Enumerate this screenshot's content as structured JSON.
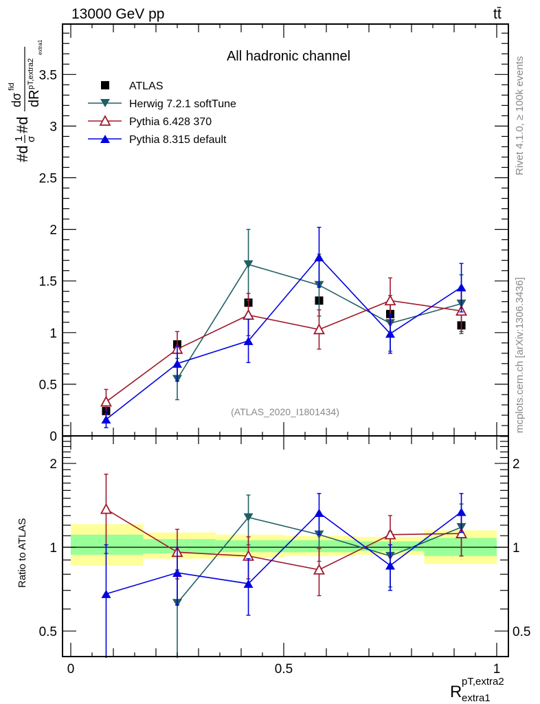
{
  "header": {
    "left_title": "13000 GeV pp",
    "right_title": "tt̄",
    "side_text_top": "Rivet 4.1.0, ≥ 100k events",
    "side_text_bottom": "mcplots.cern.ch [arXiv:1306.3436]"
  },
  "chart_data": [
    {
      "type": "scatter",
      "panel": "main",
      "title": "All hadronic channel",
      "watermark": "(ATLAS_2020_I1801434)",
      "ylabel": "#d1/σ#d dσ^fid / dR^{pT,extra2}_{extra1}",
      "xlabel": "",
      "xlim": [
        0,
        1
      ],
      "ylim": [
        0,
        4
      ],
      "yticks": [
        0,
        0.5,
        1,
        1.5,
        2,
        2.5,
        3,
        3.5
      ],
      "ytick_labels": [
        "0",
        "0.5",
        "1",
        "1.5",
        "2",
        "2.5",
        "3",
        "3.5"
      ],
      "legend_position": "top-left",
      "x": [
        0.083,
        0.25,
        0.417,
        0.583,
        0.75,
        0.917
      ],
      "series": [
        {
          "name": "ATLAS",
          "color": "#000000",
          "marker": "square",
          "values": [
            0.24,
            0.886,
            1.29,
            1.31,
            1.18,
            1.07
          ],
          "err_lo": [
            0.02,
            0.02,
            0.03,
            0.03,
            0.02,
            0.02
          ],
          "err_hi": [
            0.02,
            0.02,
            0.03,
            0.03,
            0.02,
            0.02
          ]
        },
        {
          "name": "Herwig 7.2.1 softTune",
          "color": "#1f5f63",
          "marker": "triangle-down",
          "values": [
            null,
            0.55,
            1.66,
            1.46,
            1.09,
            1.28
          ],
          "err_lo": [
            null,
            0.2,
            0.35,
            0.3,
            0.27,
            0.29
          ],
          "err_hi": [
            null,
            0.2,
            0.34,
            0.3,
            0.27,
            0.28
          ]
        },
        {
          "name": "Pythia 6.428 370",
          "color": "#a0182c",
          "marker": "triangle-up-open",
          "values": [
            0.33,
            0.84,
            1.17,
            1.03,
            1.31,
            1.21
          ],
          "err_lo": [
            0.12,
            0.17,
            0.2,
            0.19,
            0.21,
            0.2
          ],
          "err_hi": [
            0.12,
            0.17,
            0.21,
            0.19,
            0.22,
            0.2
          ]
        },
        {
          "name": "Pythia 8.315 default",
          "color": "#0000e0",
          "marker": "triangle-up",
          "values": [
            0.16,
            0.7,
            0.92,
            1.73,
            0.99,
            1.44
          ],
          "err_lo": [
            0.08,
            0.17,
            0.21,
            0.29,
            0.19,
            0.24
          ],
          "err_hi": [
            0.08,
            0.17,
            0.21,
            0.29,
            0.19,
            0.23
          ]
        }
      ]
    },
    {
      "type": "scatter",
      "panel": "ratio",
      "ylabel": "Ratio to ATLAS",
      "xlabel": "R^{pT,extra2}_{extra1}",
      "xlim": [
        0,
        1
      ],
      "ylim": [
        0.4,
        2.5
      ],
      "yscale": "log",
      "yticks": [
        0.5,
        1,
        2
      ],
      "ytick_labels": [
        "0.5",
        "1",
        "2"
      ],
      "xticks": [
        0,
        0.5,
        1
      ],
      "xtick_labels": [
        "0",
        "0.5",
        "1"
      ],
      "x": [
        0.083,
        0.25,
        0.417,
        0.583,
        0.75,
        0.917
      ],
      "bin_edges": [
        0,
        0.17,
        0.34,
        0.5,
        0.67,
        0.83,
        1.0
      ],
      "bands": {
        "yellow": {
          "color": "#ffff99",
          "lo": [
            0.86,
            0.91,
            0.92,
            0.93,
            0.94,
            0.87
          ],
          "hi": [
            1.21,
            1.13,
            1.11,
            1.1,
            1.09,
            1.15
          ]
        },
        "green": {
          "color": "#99ff99",
          "lo": [
            0.94,
            0.95,
            0.96,
            0.96,
            0.97,
            0.93
          ],
          "hi": [
            1.11,
            1.07,
            1.06,
            1.06,
            1.05,
            1.08
          ]
        }
      },
      "series": [
        {
          "name": "Herwig 7.2.1 softTune",
          "color": "#1f5f63",
          "marker": "triangle-down",
          "values": [
            null,
            0.63,
            1.28,
            1.11,
            0.93,
            1.18
          ],
          "err_lo": [
            null,
            0.3,
            0.26,
            0.22,
            0.21,
            0.25
          ],
          "err_hi": [
            null,
            0.2,
            0.26,
            0.22,
            0.21,
            0.25
          ]
        },
        {
          "name": "Pythia 6.428 370",
          "color": "#a0182c",
          "marker": "triangle-up-open",
          "values": [
            1.37,
            0.96,
            0.93,
            0.83,
            1.11,
            1.12
          ],
          "err_lo": [
            0.42,
            0.19,
            0.16,
            0.16,
            0.18,
            0.19
          ],
          "err_hi": [
            0.46,
            0.2,
            0.16,
            0.16,
            0.19,
            0.19
          ]
        },
        {
          "name": "Pythia 8.315 default",
          "color": "#0000e0",
          "marker": "triangle-up",
          "values": [
            0.68,
            0.81,
            0.74,
            1.33,
            0.86,
            1.34
          ],
          "err_lo": [
            0.4,
            0.19,
            0.17,
            0.22,
            0.16,
            0.21
          ],
          "err_hi": [
            0.34,
            0.19,
            0.17,
            0.23,
            0.16,
            0.22
          ]
        }
      ]
    }
  ]
}
